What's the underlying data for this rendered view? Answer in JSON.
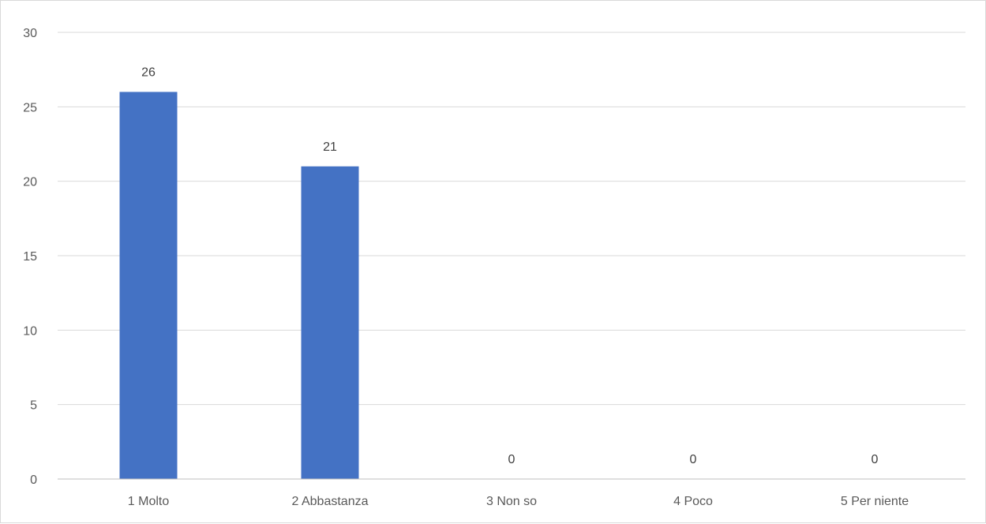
{
  "chart_data": {
    "type": "bar",
    "title": "",
    "xlabel": "",
    "ylabel": "",
    "categories": [
      "1 Molto",
      "2 Abbastanza",
      "3 Non so",
      "4 Poco",
      "5 Per niente"
    ],
    "values": [
      26,
      21,
      0,
      0,
      0
    ],
    "ylim": [
      0,
      30
    ],
    "yticks": [
      0,
      5,
      10,
      15,
      20,
      25,
      30
    ],
    "grid": true,
    "legend": "none",
    "data_labels": true,
    "colors": {
      "bar": "#4472C4",
      "grid": "#d9d9d9",
      "axis": "#bfbfbf",
      "frame": "#d9d9d9"
    }
  }
}
